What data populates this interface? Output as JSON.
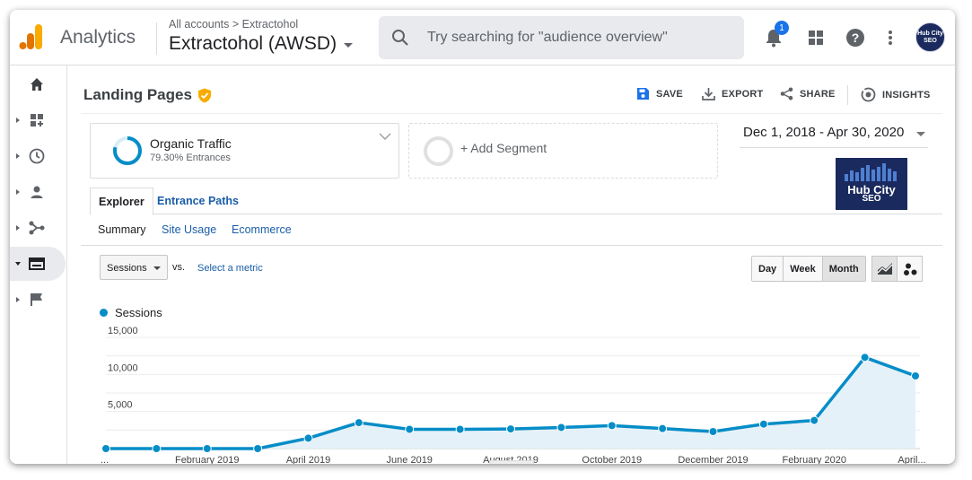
{
  "topbar": {
    "app_name": "Analytics",
    "breadcrumb": "All accounts > Extractohol",
    "property": "Extractohol (AWSD)",
    "search_placeholder": "Try searching for \"audience overview\"",
    "notification_count": "1",
    "avatar_text": "Hub City SEO"
  },
  "nav": {
    "items": [
      "home-icon",
      "customization-icon",
      "realtime-icon",
      "audience-icon",
      "acquisition-icon",
      "behavior-icon",
      "conversions-icon"
    ],
    "active": "behavior-icon"
  },
  "page": {
    "title": "Landing Pages",
    "actions": {
      "save": "SAVE",
      "export": "EXPORT",
      "share": "SHARE",
      "insights": "INSIGHTS"
    }
  },
  "segments": {
    "segment1_name": "Organic Traffic",
    "segment1_sub": "79.30% Entrances",
    "segment1_percent": 79.3,
    "add_segment": "+ Add Segment"
  },
  "date_range": "Dec 1, 2018 - Apr 30, 2020",
  "brand": {
    "line1": "Hub City",
    "line2": "SEO"
  },
  "tabs": {
    "explorer": "Explorer",
    "entrance_paths": "Entrance Paths"
  },
  "subtabs": {
    "summary": "Summary",
    "site_usage": "Site Usage",
    "ecommerce": "Ecommerce"
  },
  "controls": {
    "metric": "Sessions",
    "vs": "vs.",
    "select_metric": "Select a metric",
    "periods": [
      "Day",
      "Week",
      "Month"
    ],
    "active_period": "Month"
  },
  "colors": {
    "accent": "#058dc7",
    "link": "#1a5ea8",
    "fill": "#e5f1f9",
    "analytics_orange": "#f9ab00",
    "analytics_dark_orange": "#e37400"
  },
  "chart_data": {
    "type": "area",
    "legend": "Sessions",
    "ylim": [
      0,
      15000
    ],
    "yticks": [
      "15,000",
      "10,000",
      "5,000"
    ],
    "ytick_values": [
      15000,
      10000,
      5000
    ],
    "x": [
      "Dec 2018",
      "Jan 2019",
      "Feb 2019",
      "Mar 2019",
      "Apr 2019",
      "May 2019",
      "Jun 2019",
      "Jul 2019",
      "Aug 2019",
      "Sep 2019",
      "Oct 2019",
      "Nov 2019",
      "Dec 2019",
      "Jan 2020",
      "Feb 2020",
      "Mar 2020",
      "Apr 2020"
    ],
    "xtick_labels": [
      "...",
      "February 2019",
      "April 2019",
      "June 2019",
      "August 2019",
      "October 2019",
      "December 2019",
      "February 2020",
      "April..."
    ],
    "xtick_indices": [
      0,
      2,
      4,
      6,
      8,
      10,
      12,
      14,
      16
    ],
    "series": [
      {
        "name": "Sessions",
        "values": [
          0,
          0,
          0,
          0,
          1400,
          3500,
          2600,
          2600,
          2650,
          2850,
          3100,
          2700,
          2300,
          3300,
          3800,
          12300,
          9800
        ]
      }
    ]
  }
}
